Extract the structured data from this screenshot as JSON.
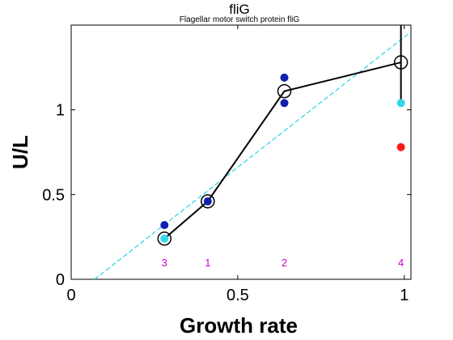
{
  "chart_data": {
    "type": "scatter",
    "title": "fliG",
    "subtitle": "Flagellar motor switch protein fliG",
    "xlabel": "Growth rate",
    "ylabel": "U/L",
    "xlim": [
      0,
      1.02
    ],
    "ylim": [
      0,
      1.5
    ],
    "xticks": [
      0,
      0.5,
      1
    ],
    "xtick_labels": [
      "0",
      "0.5",
      "1"
    ],
    "yticks": [
      0,
      0.5,
      1
    ],
    "ytick_labels": [
      "0",
      "0.5",
      "1"
    ],
    "grid": false,
    "colors": {
      "mean_line": "#000000",
      "fit_line": "#00ccdd",
      "dark_points": "#1020b0",
      "light_points": "#30d8e8",
      "red_points": "#ff1a1a",
      "count_labels": "#cc00cc"
    },
    "mean_series": {
      "x": [
        0.28,
        0.41,
        0.64,
        0.99
      ],
      "y": [
        0.24,
        0.46,
        1.11,
        1.28
      ]
    },
    "error_bar": {
      "x": 0.99,
      "low": 1.04,
      "high": 1.5
    },
    "points": [
      {
        "x": 0.28,
        "y": 0.32,
        "color": "dark"
      },
      {
        "x": 0.28,
        "y": 0.24,
        "color": "light"
      },
      {
        "x": 0.41,
        "y": 0.46,
        "color": "dark"
      },
      {
        "x": 0.64,
        "y": 1.19,
        "color": "dark"
      },
      {
        "x": 0.64,
        "y": 1.04,
        "color": "dark"
      },
      {
        "x": 0.99,
        "y": 1.04,
        "color": "light"
      },
      {
        "x": 0.99,
        "y": 0.78,
        "color": "red"
      }
    ],
    "fit_line": {
      "x": [
        0.07,
        1.02
      ],
      "y": [
        0.0,
        1.46
      ]
    },
    "count_labels": [
      {
        "x": 0.28,
        "text": "3"
      },
      {
        "x": 0.41,
        "text": "1"
      },
      {
        "x": 0.64,
        "text": "2"
      },
      {
        "x": 0.99,
        "text": "4"
      }
    ],
    "count_label_y": 0.1
  }
}
